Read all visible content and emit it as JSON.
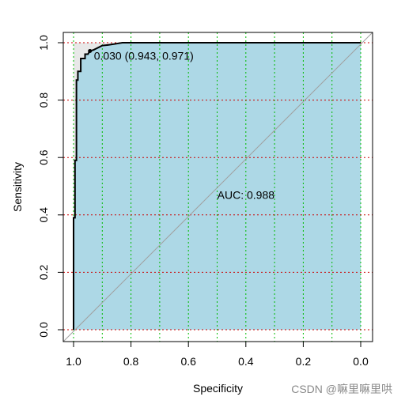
{
  "chart_data": {
    "type": "line",
    "title": "",
    "xlabel": "Specificity",
    "ylabel": "Sensitivity",
    "xlim": [
      1.0,
      0.0
    ],
    "ylim": [
      0.0,
      1.0
    ],
    "x_reversed": true,
    "x_ticks": [
      "1.0",
      "0.8",
      "0.6",
      "0.4",
      "0.2",
      "0.0"
    ],
    "y_ticks": [
      "0.0",
      "0.2",
      "0.4",
      "0.6",
      "0.8",
      "1.0"
    ],
    "grid": "on (dotted: green vertical every 0.1 specificity, red horizontal every 0.2 sensitivity)",
    "series": [
      {
        "name": "",
        "specificity": [
          1.0,
          1.0,
          0.995,
          0.995,
          0.99,
          0.99,
          0.985,
          0.985,
          0.975,
          0.975,
          0.96,
          0.96,
          0.95,
          0.943,
          0.93,
          0.92,
          0.91,
          0.9,
          0.88,
          0.86,
          0.83,
          0.8,
          0.0
        ],
        "sensitivity": [
          0.0,
          0.39,
          0.39,
          0.59,
          0.59,
          0.87,
          0.87,
          0.9,
          0.9,
          0.945,
          0.945,
          0.96,
          0.96,
          0.971,
          0.975,
          0.98,
          0.985,
          0.99,
          0.992,
          0.995,
          1.0,
          1.0,
          1.0
        ]
      }
    ],
    "auc": 0.988,
    "auc_label": "AUC: 0.988",
    "auc_label_position": [
      0.45,
      0.47
    ],
    "best_threshold": {
      "threshold": 0.03,
      "specificity": 0.943,
      "sensitivity": 0.971,
      "label": "0.030 (0.943, 0.971)"
    },
    "colors": {
      "auc_fill": "#add8e6",
      "curve": "#000000",
      "diagonal": "#a0a0a0",
      "grid_x": "#00bb00",
      "grid_y": "#cc0000",
      "unfilled_region": "#e8e8e8"
    }
  },
  "watermark": "CSDN @嘛里嘛里哄"
}
